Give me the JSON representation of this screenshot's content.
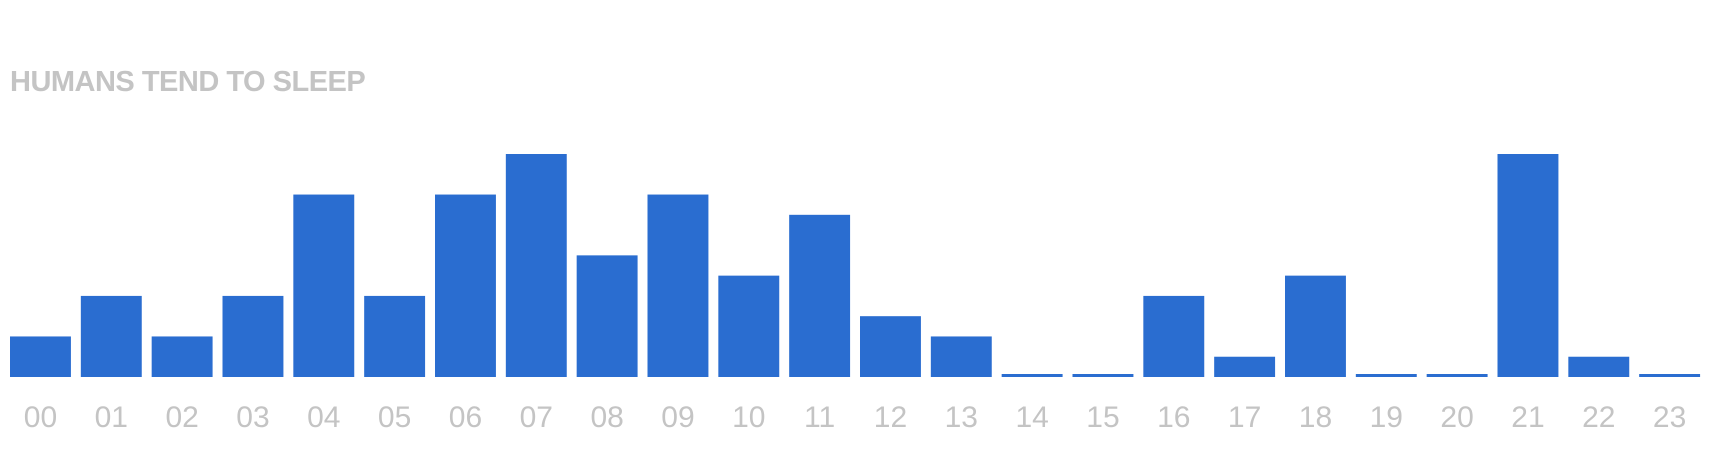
{
  "chart_data": {
    "type": "bar",
    "title": "HUMANS TEND TO SLEEP",
    "xlabel": "",
    "ylabel": "",
    "categories": [
      "00",
      "01",
      "02",
      "03",
      "04",
      "05",
      "06",
      "07",
      "08",
      "09",
      "10",
      "11",
      "12",
      "13",
      "14",
      "15",
      "16",
      "17",
      "18",
      "19",
      "20",
      "21",
      "22",
      "23"
    ],
    "values": [
      2,
      4,
      2,
      4,
      9,
      4,
      9,
      11,
      6,
      9,
      5,
      8,
      3,
      2,
      0.1,
      0.1,
      4,
      1,
      5,
      0.1,
      0.1,
      11,
      1,
      0.1
    ],
    "ylim": [
      0,
      11
    ],
    "grid": false,
    "legend": "none",
    "bar_color": "#2a6dd0",
    "label_color": "#c4c4c4"
  }
}
